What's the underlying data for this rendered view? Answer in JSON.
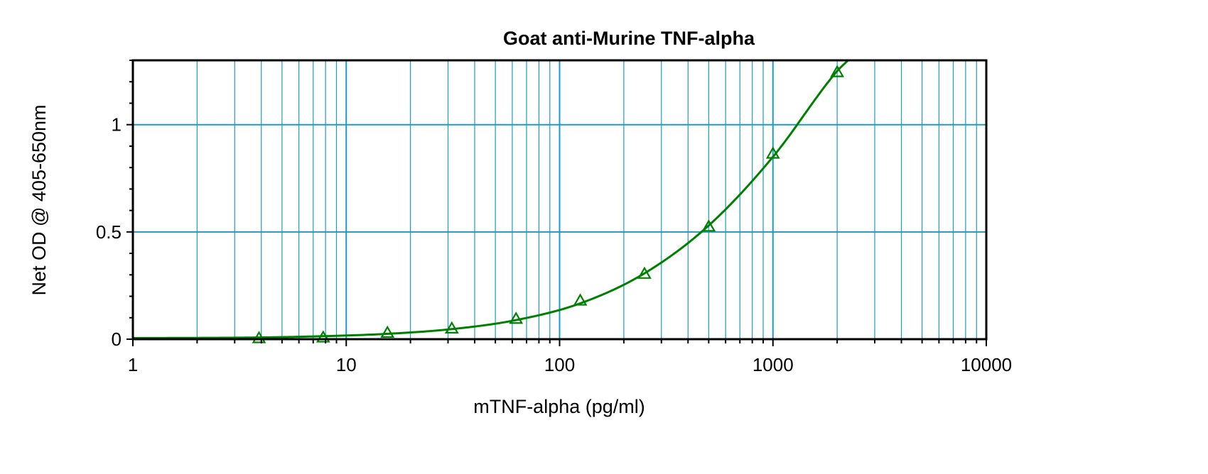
{
  "chart_data": {
    "type": "scatter",
    "title": "Goat anti-Murine TNF-alpha",
    "xlabel": "mTNF-alpha (pg/ml)",
    "ylabel": "Net OD @ 405-650nm",
    "x_scale": "log",
    "xlim": [
      1,
      10000
    ],
    "ylim": [
      0,
      1.3
    ],
    "x_ticks": [
      "1",
      "10",
      "100",
      "1000",
      "10000"
    ],
    "y_ticks": [
      "0",
      "0.5",
      "1"
    ],
    "grid": true,
    "legend": "none",
    "series": [
      {
        "marker": "triangle",
        "color": "#008000",
        "x": [
          3.9,
          7.8,
          15.6,
          31.25,
          62.5,
          125,
          250,
          500,
          1000,
          2000
        ],
        "y": [
          0.005,
          0.008,
          0.03,
          0.05,
          0.095,
          0.18,
          0.305,
          0.525,
          0.865,
          1.245
        ]
      }
    ],
    "fit_curve": {
      "color": "#008000",
      "x": [
        1,
        3.9,
        7.8,
        15.6,
        31.25,
        62.5,
        125,
        250,
        500,
        1000,
        2000,
        2250
      ],
      "y": [
        0.005,
        0.008,
        0.014,
        0.025,
        0.047,
        0.089,
        0.167,
        0.307,
        0.53,
        0.85,
        1.25,
        1.3
      ]
    },
    "colors": {
      "grid": "#1a9cc8",
      "frame": "#000000",
      "series": "#008000"
    }
  }
}
